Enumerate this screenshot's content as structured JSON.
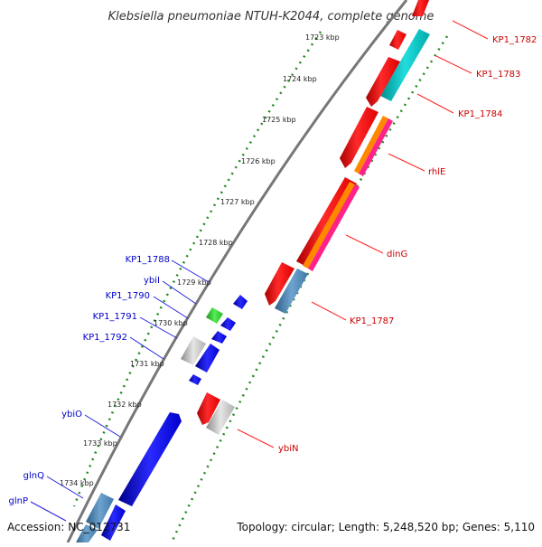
{
  "title": "Klebsiella pneumoniae NTUH-K2044, complete genome",
  "footer": {
    "accession": "Accession: NC_012731",
    "topology": "Topology: circular; Length: 5,248,520 bp; Genes: 5,110"
  },
  "ticks": [
    {
      "label": "1723 kbp"
    },
    {
      "label": "1724 kbp"
    },
    {
      "label": "1725 kbp"
    },
    {
      "label": "1726 kbp"
    },
    {
      "label": "1727 kbp"
    },
    {
      "label": "1728 kbp"
    },
    {
      "label": "1729 kbp"
    },
    {
      "label": "1730 kbp"
    },
    {
      "label": "1731 kbp"
    },
    {
      "label": "1732 kbp"
    },
    {
      "label": "1733 kbp"
    },
    {
      "label": "1734 kbp"
    }
  ],
  "forward_genes": [
    {
      "name": "KP1_1782"
    },
    {
      "name": "KP1_1783"
    },
    {
      "name": "KP1_1784"
    },
    {
      "name": "rhlE"
    },
    {
      "name": "dinG"
    },
    {
      "name": "KP1_1787"
    },
    {
      "name": "ybiN"
    }
  ],
  "reverse_genes": [
    {
      "name": "KP1_1788"
    },
    {
      "name": "ybiI"
    },
    {
      "name": "KP1_1790"
    },
    {
      "name": "KP1_1791"
    },
    {
      "name": "KP1_1792"
    },
    {
      "name": "ybiO"
    },
    {
      "name": "glnQ"
    },
    {
      "name": "glnP"
    }
  ],
  "colors": {
    "cds_red": "#ff0000",
    "cds_blue": "#0000ee",
    "cds_cyan": "#00cccc",
    "cds_steelblue": "#4682b4",
    "cds_green": "#33cc33",
    "cds_gray": "#bbbbbb",
    "orange": "#ff8800",
    "pink": "#ff2288",
    "backbone": "#777777",
    "dots": "#228822"
  }
}
